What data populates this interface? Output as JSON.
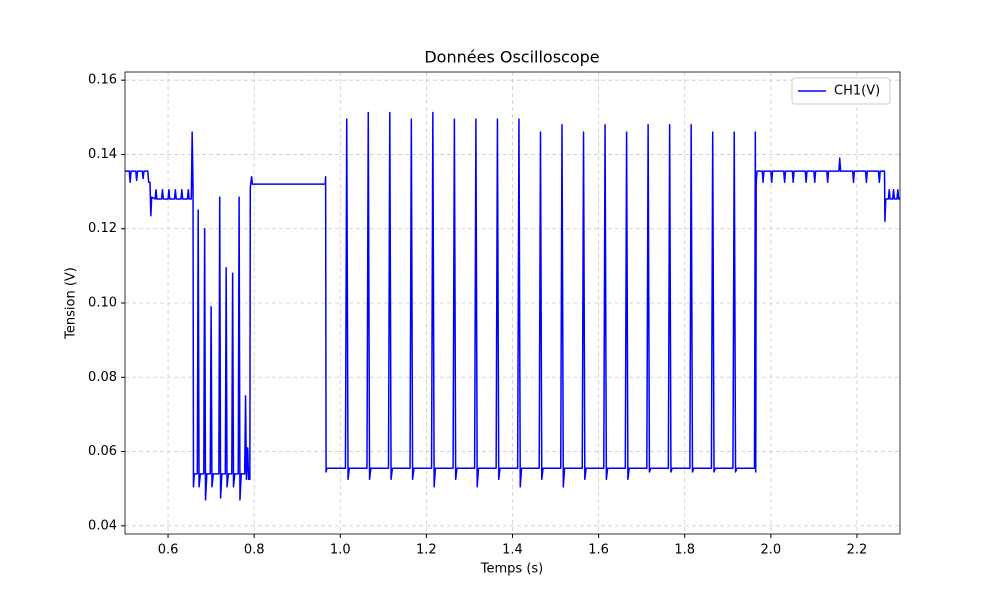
{
  "chart_data": {
    "type": "line",
    "title": "Données Oscilloscope",
    "xlabel": "Temps (s)",
    "ylabel": "Tension (V)",
    "xlim": [
      0.5,
      2.3
    ],
    "ylim": [
      0.0378,
      0.1622
    ],
    "xticks": [
      0.6,
      0.8,
      {
        "value": 1,
        "label": "1.0"
      },
      1.2,
      1.4,
      1.6,
      1.8,
      {
        "value": 2,
        "label": "2.0"
      },
      2.2
    ],
    "yticks": [
      0.04,
      0.06,
      0.08,
      {
        "value": 0.1,
        "label": "0.10"
      },
      0.12,
      0.14,
      0.16
    ],
    "grid": true,
    "legend": "upper-right",
    "x": [
      0.5,
      0.51,
      0.512,
      0.514,
      0.525,
      0.527,
      0.529,
      0.54,
      0.542,
      0.544,
      0.553,
      0.555,
      0.558,
      0.56,
      0.562,
      0.57,
      0.572,
      0.574,
      0.585,
      0.587,
      0.589,
      0.6,
      0.602,
      0.604,
      0.615,
      0.617,
      0.619,
      0.63,
      0.632,
      0.634,
      0.645,
      0.647,
      0.649,
      0.654,
      0.656,
      0.658,
      0.659,
      0.661,
      0.668,
      0.67,
      0.672,
      0.675,
      0.683,
      0.685,
      0.687,
      0.69,
      0.698,
      0.7,
      0.702,
      0.705,
      0.718,
      0.72,
      0.722,
      0.725,
      0.733,
      0.735,
      0.737,
      0.74,
      0.748,
      0.75,
      0.752,
      0.755,
      0.763,
      0.765,
      0.767,
      0.77,
      0.778,
      0.78,
      0.782,
      0.785,
      0.787,
      0.79,
      0.791,
      0.794,
      0.796,
      0.965,
      0.966,
      0.967,
      0.969,
      1.012,
      1.015,
      1.018,
      1.021,
      1.062,
      1.065,
      1.068,
      1.071,
      1.112,
      1.115,
      1.118,
      1.121,
      1.162,
      1.165,
      1.168,
      1.171,
      1.212,
      1.215,
      1.218,
      1.221,
      1.262,
      1.265,
      1.268,
      1.271,
      1.312,
      1.315,
      1.318,
      1.321,
      1.362,
      1.365,
      1.368,
      1.371,
      1.412,
      1.415,
      1.418,
      1.421,
      1.462,
      1.465,
      1.468,
      1.471,
      1.512,
      1.515,
      1.518,
      1.521,
      1.562,
      1.565,
      1.568,
      1.571,
      1.612,
      1.615,
      1.618,
      1.621,
      1.662,
      1.665,
      1.668,
      1.671,
      1.712,
      1.715,
      1.718,
      1.721,
      1.762,
      1.765,
      1.768,
      1.771,
      1.812,
      1.815,
      1.818,
      1.821,
      1.862,
      1.865,
      1.868,
      1.871,
      1.912,
      1.915,
      1.918,
      1.921,
      1.962,
      1.964,
      1.965,
      1.966,
      1.968,
      1.98,
      1.982,
      1.984,
      2.0,
      2.002,
      2.004,
      2.03,
      2.032,
      2.034,
      2.05,
      2.052,
      2.054,
      2.08,
      2.082,
      2.084,
      2.1,
      2.102,
      2.104,
      2.13,
      2.132,
      2.134,
      2.158,
      2.16,
      2.162,
      2.19,
      2.192,
      2.194,
      2.22,
      2.222,
      2.224,
      2.25,
      2.252,
      2.254,
      2.264,
      2.265,
      2.267,
      2.273,
      2.275,
      2.277,
      2.283,
      2.285,
      2.287,
      2.293,
      2.295,
      2.297,
      2.3
    ],
    "series": [
      {
        "name": "CH1(V)",
        "color": "#0000ff",
        "values": [
          0.1355,
          0.1355,
          0.1325,
          0.1355,
          0.1355,
          0.133,
          0.1355,
          0.1355,
          0.1335,
          0.1355,
          0.1355,
          0.1325,
          0.1325,
          0.1235,
          0.1285,
          0.128,
          0.1305,
          0.128,
          0.128,
          0.1305,
          0.128,
          0.128,
          0.1305,
          0.128,
          0.128,
          0.1305,
          0.128,
          0.128,
          0.1305,
          0.128,
          0.128,
          0.1305,
          0.128,
          0.128,
          0.146,
          0.131,
          0.0505,
          0.054,
          0.054,
          0.125,
          0.0505,
          0.054,
          0.054,
          0.12,
          0.047,
          0.054,
          0.054,
          0.099,
          0.0505,
          0.054,
          0.054,
          0.1285,
          0.0475,
          0.054,
          0.054,
          0.1095,
          0.0505,
          0.054,
          0.054,
          0.108,
          0.0505,
          0.054,
          0.054,
          0.1285,
          0.047,
          0.054,
          0.054,
          0.075,
          0.0525,
          0.061,
          0.0525,
          0.0525,
          0.131,
          0.134,
          0.132,
          0.132,
          0.134,
          0.0545,
          0.0555,
          0.0555,
          0.1495,
          0.0525,
          0.0555,
          0.0555,
          0.1513,
          0.0525,
          0.0555,
          0.0555,
          0.1513,
          0.0525,
          0.0555,
          0.0555,
          0.1495,
          0.0525,
          0.0555,
          0.0555,
          0.1513,
          0.0505,
          0.0555,
          0.0555,
          0.1495,
          0.0525,
          0.0555,
          0.0555,
          0.1495,
          0.0505,
          0.0555,
          0.0555,
          0.1495,
          0.0525,
          0.0555,
          0.0555,
          0.1495,
          0.0505,
          0.0555,
          0.0555,
          0.146,
          0.0525,
          0.0555,
          0.0555,
          0.148,
          0.0505,
          0.0555,
          0.0555,
          0.146,
          0.0525,
          0.0555,
          0.0555,
          0.148,
          0.0525,
          0.0555,
          0.0555,
          0.146,
          0.0525,
          0.0555,
          0.0555,
          0.148,
          0.0545,
          0.0555,
          0.0555,
          0.148,
          0.0545,
          0.0555,
          0.0555,
          0.148,
          0.0545,
          0.0555,
          0.0555,
          0.146,
          0.0545,
          0.0555,
          0.0555,
          0.146,
          0.0545,
          0.0555,
          0.0555,
          0.146,
          0.0545,
          0.1325,
          0.1355,
          0.1355,
          0.1325,
          0.1355,
          0.1355,
          0.1325,
          0.1355,
          0.1355,
          0.1325,
          0.1355,
          0.1355,
          0.1325,
          0.1355,
          0.1355,
          0.1325,
          0.1355,
          0.1355,
          0.1325,
          0.1355,
          0.1355,
          0.1325,
          0.1355,
          0.1355,
          0.139,
          0.1355,
          0.1355,
          0.1325,
          0.1355,
          0.1355,
          0.1325,
          0.1355,
          0.1355,
          0.1325,
          0.1355,
          0.1355,
          0.122,
          0.128,
          0.128,
          0.1305,
          0.128,
          0.128,
          0.1305,
          0.128,
          0.128,
          0.1305,
          0.128,
          0.128
        ]
      }
    ]
  }
}
